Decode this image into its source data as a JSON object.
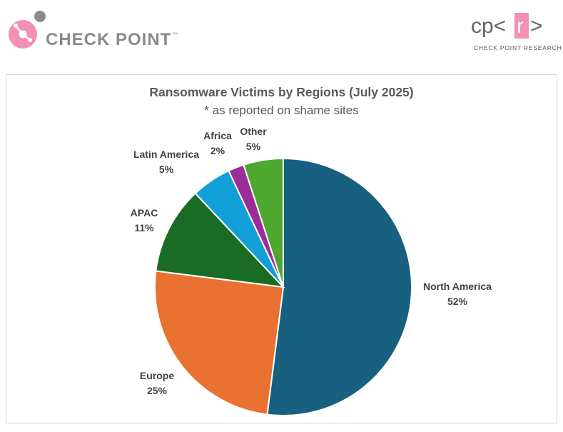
{
  "header": {
    "left_logo": {
      "text": "CHECK POINT",
      "tm": "™",
      "icon": "check-point-logo-icon"
    },
    "right_logo": {
      "mark_left": "cp<",
      "mark_letter": "r",
      "mark_right": ">",
      "subtitle": "CHECK POINT RESEARCH",
      "icon": "cpr-logo-icon"
    }
  },
  "colors": {
    "north_america": "#17607f",
    "europe": "#e97132",
    "apac": "#1a6b24",
    "latin_america": "#129fd8",
    "africa": "#9c2c97",
    "other": "#4ea72e",
    "brand_pink": "#f48fb6"
  },
  "chart_data": {
    "type": "pie",
    "title": "Ransomware Victims by Regions (July 2025)",
    "subtitle": "* as reported on shame sites",
    "slices": [
      {
        "label": "North America",
        "value": 52,
        "display": "52%",
        "color": "#17607f"
      },
      {
        "label": "Europe",
        "value": 25,
        "display": "25%",
        "color": "#e97132"
      },
      {
        "label": "APAC",
        "value": 11,
        "display": "11%",
        "color": "#1a6b24"
      },
      {
        "label": "Latin America",
        "value": 5,
        "display": "5%",
        "color": "#129fd8"
      },
      {
        "label": "Africa",
        "value": 2,
        "display": "2%",
        "color": "#9c2c97"
      },
      {
        "label": "Other",
        "value": 5,
        "display": "5%",
        "color": "#4ea72e"
      }
    ],
    "start": "12 o'clock",
    "direction": "clockwise",
    "legend": "none (data labels outside slices)"
  }
}
